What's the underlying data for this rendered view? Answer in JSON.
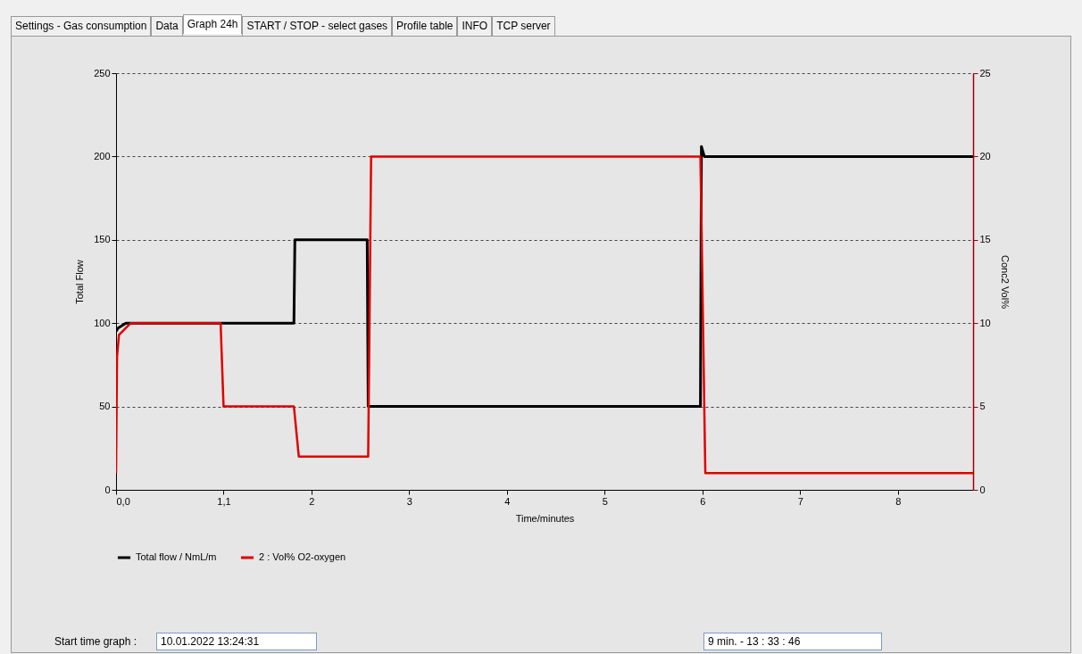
{
  "chart_data": {
    "type": "line",
    "xlabel": "Time/minutes",
    "ylabel": "Total Flow",
    "y2label": "Conc2 Vol%",
    "xlim": [
      0,
      8.77
    ],
    "xticks": [
      {
        "value": 0,
        "label": "0,0"
      },
      {
        "value": 1.1,
        "label": "1,1"
      },
      2,
      3,
      4,
      5,
      6,
      7,
      8
    ],
    "ylim": [
      0,
      250
    ],
    "yticks": [
      0,
      50,
      100,
      150,
      200,
      250
    ],
    "y2lim": [
      0,
      25
    ],
    "y2ticks": [
      0,
      5,
      10,
      15,
      20,
      25
    ],
    "grid": "y",
    "legend": "bottom",
    "line_style": "solid",
    "series": [
      {
        "name": "Total flow / NmL/m",
        "color": "#000000",
        "x": [
          0,
          0.02,
          0.1,
          1.82,
          1.83,
          2.57,
          2.58,
          5.98,
          5.99,
          6.02,
          8.77
        ],
        "values": [
          95,
          97,
          100,
          100,
          150,
          150,
          50,
          50,
          206,
          200,
          200
        ]
      },
      {
        "name": "2 : Vol% O2-oxygen",
        "color": "#e00000",
        "axis": "y2",
        "x": [
          0,
          0.01,
          0.03,
          0.15,
          1.07,
          1.1,
          1.82,
          1.87,
          2.58,
          2.61,
          5.98,
          6.03,
          8.77
        ],
        "values": [
          1,
          8,
          9.3,
          10,
          10,
          5,
          5,
          2,
          2,
          20,
          20,
          1,
          1
        ]
      }
    ],
    "annotations": [
      "Settings - Gas consumption",
      "Data",
      "Graph 24h",
      "START / STOP - select gases",
      "Profile table",
      "INFO",
      "TCP server",
      "Start time graph :",
      "10.01.2022 13:24:31",
      "9 min.  - 13 : 33 : 46"
    ]
  }
}
